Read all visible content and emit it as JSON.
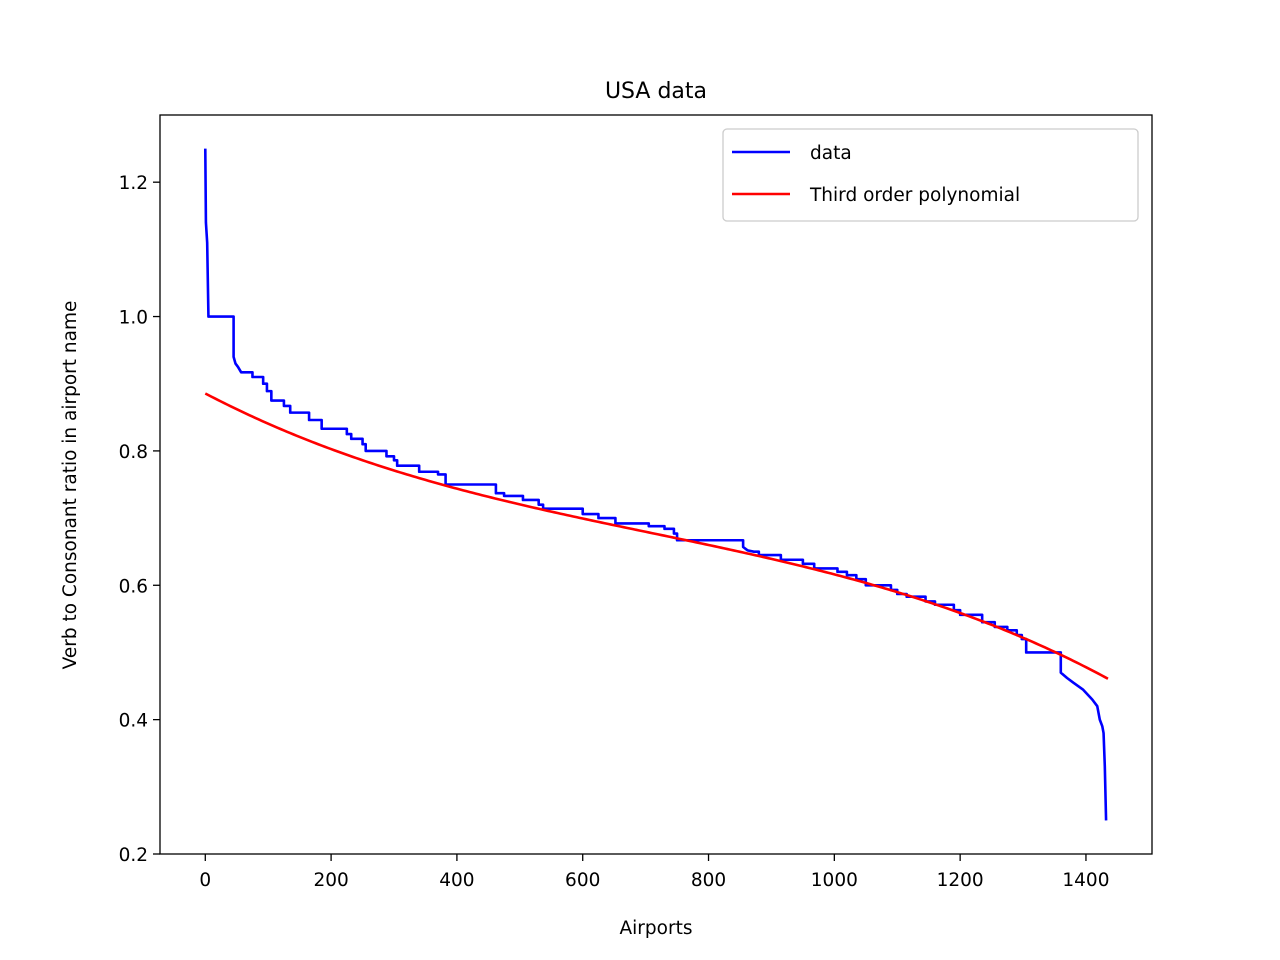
{
  "chart_data": {
    "type": "line",
    "title": "USA data",
    "xlabel": "Airports",
    "ylabel": "Verb to Consonant ratio in airport name",
    "xlim": [
      -72,
      1505
    ],
    "ylim": [
      0.2,
      1.3
    ],
    "xticks": [
      0,
      200,
      400,
      600,
      800,
      1000,
      1200,
      1400
    ],
    "yticks": [
      0.2,
      0.4,
      0.6,
      0.8,
      1.0,
      1.2
    ],
    "xtick_labels": [
      "0",
      "200",
      "400",
      "600",
      "800",
      "1000",
      "1200",
      "1400"
    ],
    "ytick_labels": [
      "0.2",
      "0.4",
      "0.6",
      "0.8",
      "1.0",
      "1.2"
    ],
    "grid": false,
    "legend_position": "upper right",
    "series": [
      {
        "name": "data",
        "color": "#0000ff",
        "style": "step",
        "points": [
          [
            0,
            1.25
          ],
          [
            1,
            1.14
          ],
          [
            3,
            1.11
          ],
          [
            5,
            1.0
          ],
          [
            45,
            1.0
          ],
          [
            45,
            0.94
          ],
          [
            48,
            0.93
          ],
          [
            52,
            0.925
          ],
          [
            57,
            0.917
          ],
          [
            75,
            0.917
          ],
          [
            75,
            0.91
          ],
          [
            92,
            0.91
          ],
          [
            92,
            0.9
          ],
          [
            98,
            0.9
          ],
          [
            98,
            0.889
          ],
          [
            105,
            0.889
          ],
          [
            105,
            0.875
          ],
          [
            125,
            0.875
          ],
          [
            125,
            0.867
          ],
          [
            135,
            0.867
          ],
          [
            135,
            0.857
          ],
          [
            165,
            0.857
          ],
          [
            165,
            0.846
          ],
          [
            185,
            0.846
          ],
          [
            185,
            0.833
          ],
          [
            225,
            0.833
          ],
          [
            225,
            0.825
          ],
          [
            232,
            0.825
          ],
          [
            232,
            0.818
          ],
          [
            250,
            0.818
          ],
          [
            250,
            0.81
          ],
          [
            255,
            0.81
          ],
          [
            255,
            0.8
          ],
          [
            288,
            0.8
          ],
          [
            288,
            0.792
          ],
          [
            300,
            0.792
          ],
          [
            300,
            0.786
          ],
          [
            305,
            0.786
          ],
          [
            305,
            0.778
          ],
          [
            340,
            0.778
          ],
          [
            340,
            0.769
          ],
          [
            370,
            0.769
          ],
          [
            370,
            0.765
          ],
          [
            382,
            0.765
          ],
          [
            382,
            0.75
          ],
          [
            462,
            0.75
          ],
          [
            462,
            0.737
          ],
          [
            475,
            0.737
          ],
          [
            475,
            0.733
          ],
          [
            505,
            0.733
          ],
          [
            505,
            0.727
          ],
          [
            530,
            0.727
          ],
          [
            530,
            0.72
          ],
          [
            537,
            0.72
          ],
          [
            537,
            0.714
          ],
          [
            600,
            0.714
          ],
          [
            600,
            0.706
          ],
          [
            625,
            0.706
          ],
          [
            625,
            0.7
          ],
          [
            652,
            0.7
          ],
          [
            652,
            0.692
          ],
          [
            705,
            0.692
          ],
          [
            705,
            0.688
          ],
          [
            730,
            0.688
          ],
          [
            730,
            0.684
          ],
          [
            745,
            0.684
          ],
          [
            745,
            0.677
          ],
          [
            750,
            0.677
          ],
          [
            750,
            0.667
          ],
          [
            855,
            0.667
          ],
          [
            855,
            0.657
          ],
          [
            862,
            0.652
          ],
          [
            872,
            0.65
          ],
          [
            880,
            0.65
          ],
          [
            880,
            0.645
          ],
          [
            915,
            0.645
          ],
          [
            915,
            0.638
          ],
          [
            950,
            0.638
          ],
          [
            950,
            0.632
          ],
          [
            968,
            0.632
          ],
          [
            968,
            0.625
          ],
          [
            1005,
            0.625
          ],
          [
            1005,
            0.62
          ],
          [
            1020,
            0.62
          ],
          [
            1020,
            0.615
          ],
          [
            1035,
            0.615
          ],
          [
            1035,
            0.609
          ],
          [
            1050,
            0.609
          ],
          [
            1050,
            0.6
          ],
          [
            1090,
            0.6
          ],
          [
            1090,
            0.593
          ],
          [
            1100,
            0.593
          ],
          [
            1100,
            0.587
          ],
          [
            1115,
            0.587
          ],
          [
            1115,
            0.583
          ],
          [
            1145,
            0.583
          ],
          [
            1145,
            0.576
          ],
          [
            1160,
            0.576
          ],
          [
            1160,
            0.571
          ],
          [
            1190,
            0.571
          ],
          [
            1190,
            0.563
          ],
          [
            1200,
            0.563
          ],
          [
            1200,
            0.556
          ],
          [
            1235,
            0.556
          ],
          [
            1235,
            0.545
          ],
          [
            1255,
            0.545
          ],
          [
            1255,
            0.538
          ],
          [
            1275,
            0.538
          ],
          [
            1275,
            0.533
          ],
          [
            1290,
            0.533
          ],
          [
            1290,
            0.526
          ],
          [
            1298,
            0.526
          ],
          [
            1298,
            0.52
          ],
          [
            1305,
            0.52
          ],
          [
            1305,
            0.5
          ],
          [
            1360,
            0.5
          ],
          [
            1360,
            0.47
          ],
          [
            1370,
            0.462
          ],
          [
            1380,
            0.455
          ],
          [
            1395,
            0.445
          ],
          [
            1410,
            0.43
          ],
          [
            1418,
            0.42
          ],
          [
            1422,
            0.4
          ],
          [
            1426,
            0.39
          ],
          [
            1428,
            0.38
          ],
          [
            1430,
            0.33
          ],
          [
            1432,
            0.25
          ]
        ]
      },
      {
        "name": "Third order polynomial",
        "color": "#ff0000",
        "style": "line",
        "polynomial": {
          "x0": 716,
          "coefficients": [
            0.6765,
            -0.000195,
            -5e-09,
            -1.96e-10
          ]
        },
        "x_range": [
          0,
          1435
        ]
      }
    ]
  }
}
